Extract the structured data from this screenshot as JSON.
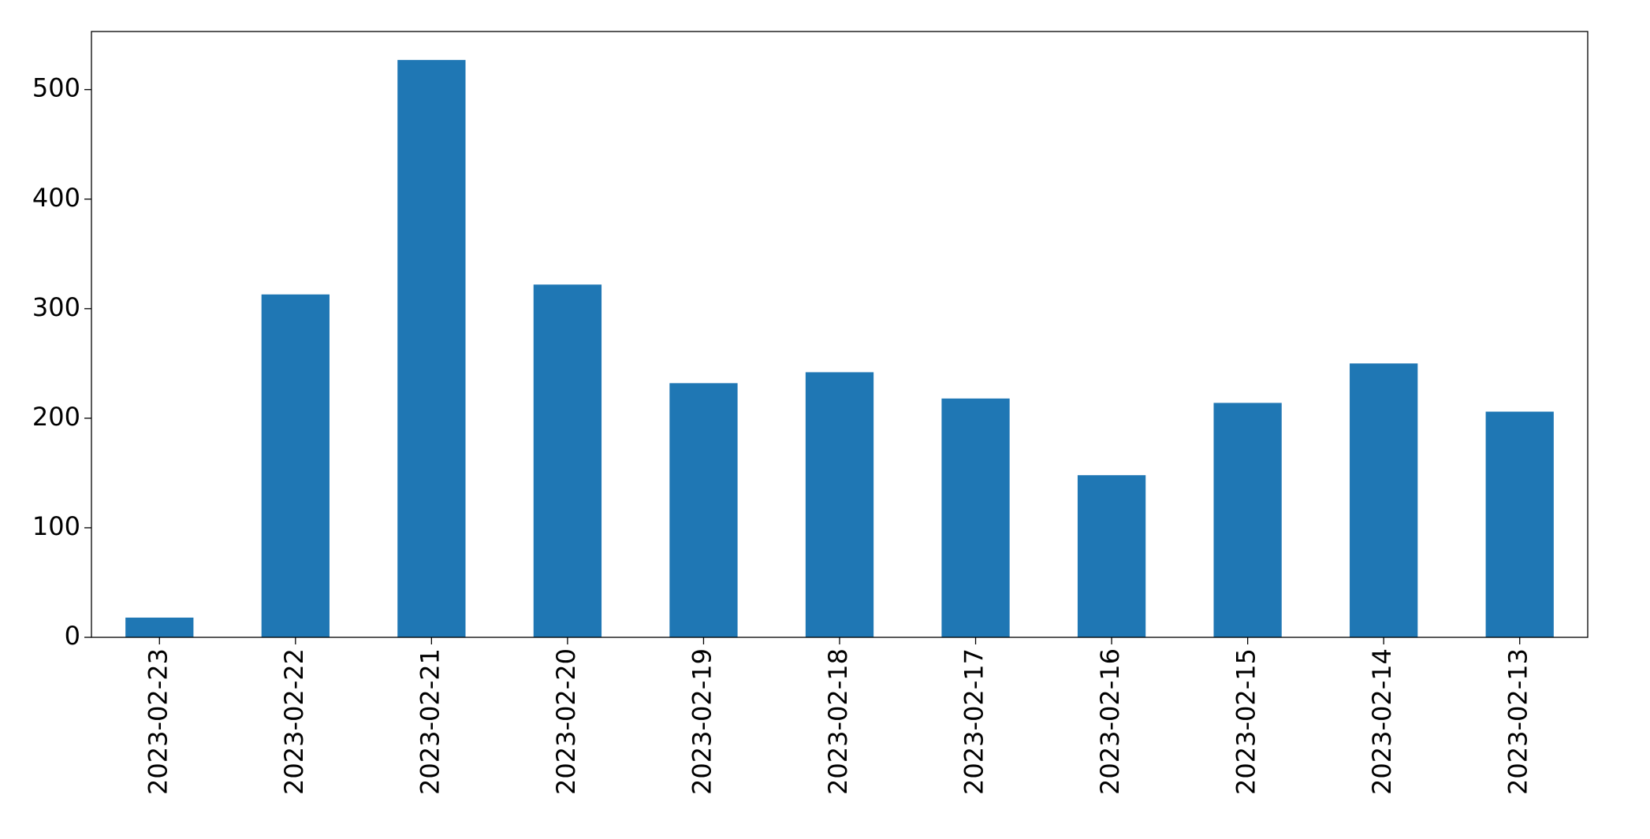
{
  "chart_data": {
    "type": "bar",
    "categories": [
      "2023-02-23",
      "2023-02-22",
      "2023-02-21",
      "2023-02-20",
      "2023-02-19",
      "2023-02-18",
      "2023-02-17",
      "2023-02-16",
      "2023-02-15",
      "2023-02-14",
      "2023-02-13"
    ],
    "values": [
      18,
      313,
      527,
      322,
      232,
      242,
      218,
      148,
      214,
      250,
      206
    ],
    "color": "#1f77b4",
    "ylim": [
      0,
      553
    ],
    "yticks": [
      0,
      100,
      200,
      300,
      400,
      500
    ],
    "grid": false
  }
}
